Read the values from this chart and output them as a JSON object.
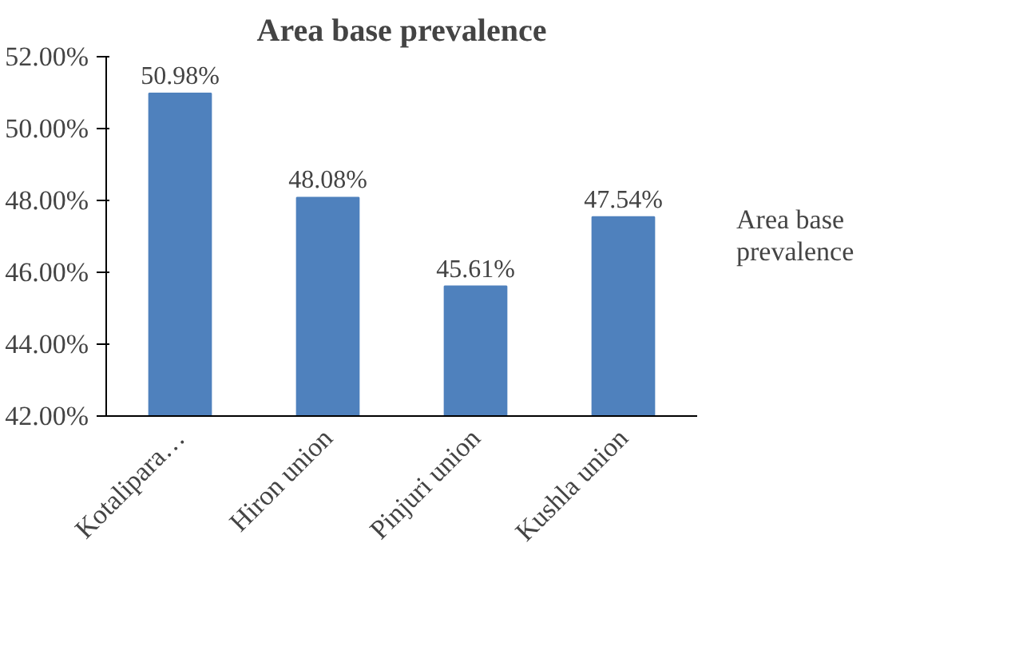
{
  "chart_data": {
    "type": "bar",
    "title": "Area base prevalence",
    "categories": [
      "Kotalipara…",
      "Hiron union",
      "Pinjuri union",
      "Kushla union"
    ],
    "series": [
      {
        "name": "Area base prevalence",
        "color": "#4f81bd",
        "values": [
          50.98,
          48.08,
          45.61,
          47.54
        ],
        "value_labels": [
          "50.98%",
          "48.08%",
          "45.61%",
          "47.54%"
        ]
      }
    ],
    "ylim": [
      42,
      52
    ],
    "yticks": [
      {
        "value": 42,
        "label": "42.00%"
      },
      {
        "value": 44,
        "label": "44.00%"
      },
      {
        "value": 46,
        "label": "46.00%"
      },
      {
        "value": 48,
        "label": "48.00%"
      },
      {
        "value": 50,
        "label": "50.00%"
      },
      {
        "value": 52,
        "label": "52.00%"
      }
    ],
    "grid": false,
    "legend": "right"
  }
}
